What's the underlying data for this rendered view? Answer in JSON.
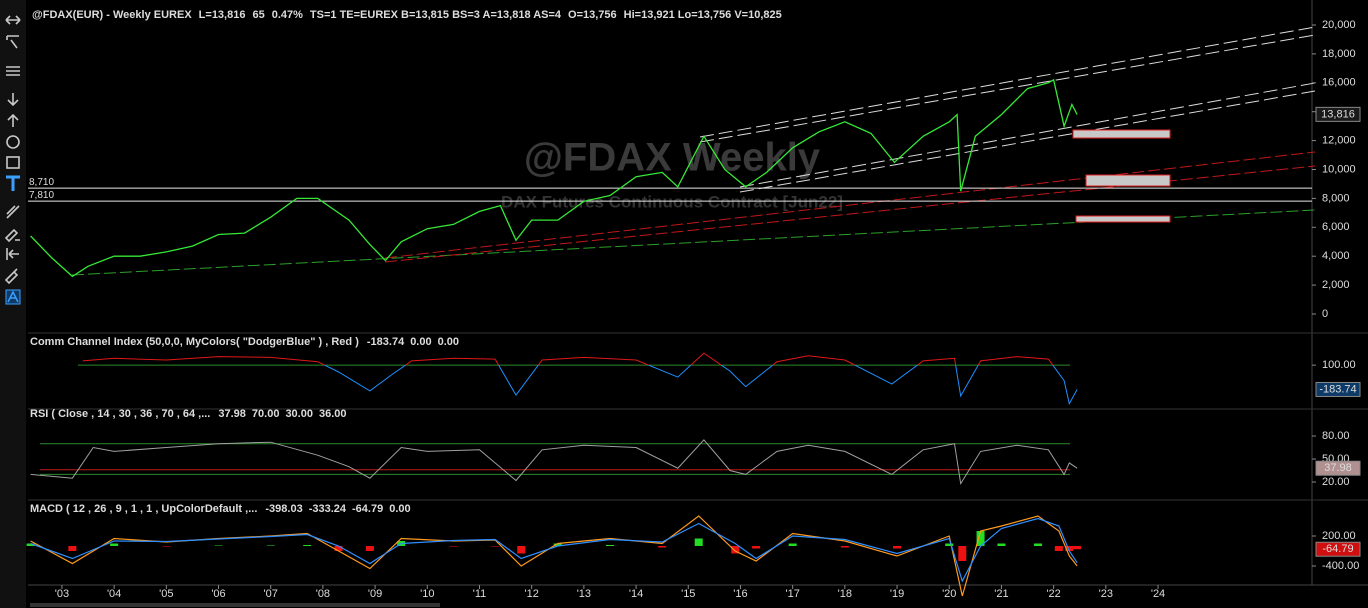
{
  "header": {
    "items": [
      {
        "text": "@FDAX(EUR) - Weekly  EUREX",
        "color": "#e8e8e8"
      },
      {
        "text": "L=13,816",
        "color": "#3ee03e"
      },
      {
        "text": "65",
        "color": "#3ee03e"
      },
      {
        "text": "0.47%",
        "color": "#3ee03e"
      },
      {
        "text": "TS=1  TE=EUREX  B=13,815  BS=3  A=13,818  AS=4",
        "color": "#e8e8e8"
      },
      {
        "text": "O=13,756",
        "color": "#3ee03e"
      },
      {
        "text": "Hi=13,921  Lo=13,756  V=10,825",
        "color": "#e8e8e8"
      }
    ]
  },
  "chart_data": [
    {
      "type": "line",
      "title": "@FDAX Weekly",
      "subtitle": "DAX  Futures Continuous Contract [Jun22]",
      "color": "#36e836",
      "xlim": [
        2002.35,
        2026.95
      ],
      "ylim": [
        -1107,
        21038
      ],
      "yticks": [
        {
          "value": 0,
          "label": "0"
        },
        {
          "value": 2000,
          "label": "2,000"
        },
        {
          "value": 4000,
          "label": "4,000"
        },
        {
          "value": 6000,
          "label": "6,000"
        },
        {
          "value": 8000,
          "label": "8,000"
        },
        {
          "value": 10000,
          "label": "10,000"
        },
        {
          "value": 12000,
          "label": "12,000"
        },
        {
          "value": 14000,
          "label": "14,000"
        },
        {
          "value": 16000,
          "label": "16,000"
        },
        {
          "value": 18000,
          "label": "18,000"
        },
        {
          "value": 20000,
          "label": "20,000"
        }
      ],
      "hlines": [
        {
          "value": 8710,
          "label": "8,710"
        },
        {
          "value": 7810,
          "label": "7,810"
        }
      ],
      "last_label": "13,816",
      "x": [
        2002.4,
        2002.8,
        2003.2,
        2003.5,
        2004,
        2004.5,
        2005,
        2005.5,
        2006,
        2006.5,
        2007,
        2007.5,
        2007.9,
        2008.5,
        2008.9,
        2009.2,
        2009.5,
        2010,
        2010.5,
        2011,
        2011.4,
        2011.7,
        2012,
        2012.5,
        2013,
        2013.5,
        2014,
        2014.5,
        2014.8,
        2015.3,
        2015.7,
        2016.1,
        2016.5,
        2017,
        2017.5,
        2018,
        2018.5,
        2018.95,
        2019.5,
        2020.0,
        2020.15,
        2020.22,
        2020.5,
        2021,
        2021.5,
        2021.9,
        2022.0,
        2022.2,
        2022.35,
        2022.45
      ],
      "values": [
        5400,
        3900,
        2600,
        3300,
        4000,
        4000,
        4300,
        4700,
        5500,
        5600,
        6700,
        8000,
        8000,
        6500,
        4800,
        3700,
        5000,
        5900,
        6200,
        7100,
        7500,
        5100,
        6500,
        6500,
        7800,
        8200,
        9500,
        9800,
        8800,
        12300,
        10000,
        8800,
        9800,
        11500,
        12600,
        13300,
        12500,
        10500,
        12300,
        13300,
        13800,
        8500,
        12300,
        13800,
        15600,
        16000,
        16200,
        13000,
        14500,
        13816
      ]
    },
    {
      "type": "line",
      "title": "Comm Channel Index (50,0,0, MyColors( \"DodgerBlue\" ) , Red )",
      "readouts": [
        {
          "text": "-183.74",
          "color": "#2f8fff"
        },
        {
          "text": "0.00",
          "color": "#2ea02e"
        },
        {
          "text": "0.00",
          "color": "#2ea02e"
        }
      ],
      "color_above": "#e01818",
      "color_below": "#1e90ff",
      "levels": [
        100
      ],
      "level_color": "#2a8a2a",
      "xlim": [
        2002.35,
        2026.95
      ],
      "ylim": [
        -400,
        300
      ],
      "yticks": [
        {
          "value": 100,
          "label": "100.00"
        }
      ],
      "x": [
        2003.4,
        2004,
        2005,
        2006,
        2007,
        2007.9,
        2008.3,
        2008.9,
        2009.3,
        2009.7,
        2010.5,
        2011.3,
        2011.7,
        2012.2,
        2013,
        2014,
        2014.8,
        2015.3,
        2015.8,
        2016.1,
        2016.7,
        2017.3,
        2018,
        2018.9,
        2019.5,
        2020.1,
        2020.22,
        2020.6,
        2021.3,
        2021.9,
        2022.2,
        2022.3,
        2022.45
      ],
      "values": [
        150,
        180,
        160,
        200,
        190,
        140,
        20,
        -200,
        -20,
        150,
        180,
        170,
        -250,
        160,
        190,
        160,
        -40,
        240,
        30,
        -150,
        140,
        210,
        160,
        -120,
        150,
        180,
        -260,
        150,
        200,
        170,
        -80,
        -350,
        -183.74
      ]
    },
    {
      "type": "line",
      "title": "RSI ( Close , 14 , 30 , 36 , 70 , 64 ,...",
      "color": "#a0a0a0",
      "readouts": [
        {
          "text": "37.98",
          "color": "#a0a0a0"
        },
        {
          "text": "70.00",
          "color": "#2ea02e"
        },
        {
          "text": "30.00",
          "color": "#2ea02e"
        },
        {
          "text": "36.00",
          "color": "#e01818"
        }
      ],
      "levels": [
        70,
        30,
        36
      ],
      "level_colors": [
        "#2a8a2a",
        "#2a8a2a",
        "#c01818"
      ],
      "xlim": [
        2002.35,
        2026.95
      ],
      "ylim": [
        9.6,
        100.9
      ],
      "yticks": [
        {
          "value": 80,
          "label": "80.00"
        },
        {
          "value": 50,
          "label": "50.00"
        },
        {
          "value": 20,
          "label": "20.00"
        }
      ],
      "x": [
        2002.4,
        2003.2,
        2003.6,
        2004,
        2005,
        2006,
        2007,
        2007.9,
        2008.5,
        2008.9,
        2009.5,
        2010,
        2011,
        2011.7,
        2012.2,
        2013,
        2014,
        2014.8,
        2015.3,
        2015.8,
        2016.1,
        2016.7,
        2017.3,
        2018,
        2018.9,
        2019.5,
        2020.1,
        2020.22,
        2020.6,
        2021.3,
        2021.9,
        2022.2,
        2022.3,
        2022.45
      ],
      "values": [
        30,
        25,
        65,
        60,
        65,
        70,
        72,
        55,
        40,
        25,
        65,
        60,
        62,
        22,
        62,
        68,
        65,
        38,
        75,
        35,
        30,
        60,
        68,
        60,
        30,
        62,
        70,
        18,
        60,
        68,
        62,
        30,
        45,
        37.98
      ]
    },
    {
      "type": "line",
      "title": "MACD ( 12 , 26 , 9 , 1 , 1 , UpColorDefault ,...",
      "readouts": [
        {
          "text": "-398.03",
          "color": "#ff9a1e"
        },
        {
          "text": "-333.24",
          "color": "#2f8fff"
        },
        {
          "text": "-64.79",
          "color": "#ff3030"
        },
        {
          "text": "0.00",
          "color": "#2ea02e"
        }
      ],
      "up_color": "#22dd22",
      "down_color": "#ee1111",
      "xlim": [
        2002.35,
        2026.95
      ],
      "ylim": [
        -780,
        620
      ],
      "yticks": [
        {
          "value": 200,
          "label": "200.00"
        },
        {
          "value": -400,
          "label": "-400.00"
        }
      ],
      "xticks": [
        {
          "value": 2003,
          "label": "'03"
        },
        {
          "value": 2004,
          "label": "'04"
        },
        {
          "value": 2005,
          "label": "'05"
        },
        {
          "value": 2006,
          "label": "'06"
        },
        {
          "value": 2007,
          "label": "'07"
        },
        {
          "value": 2008,
          "label": "'08"
        },
        {
          "value": 2009,
          "label": "'09"
        },
        {
          "value": 2010,
          "label": "'10"
        },
        {
          "value": 2011,
          "label": "'11"
        },
        {
          "value": 2012,
          "label": "'12"
        },
        {
          "value": 2013,
          "label": "'13"
        },
        {
          "value": 2014,
          "label": "'14"
        },
        {
          "value": 2015,
          "label": "'15"
        },
        {
          "value": 2016,
          "label": "'16"
        },
        {
          "value": 2017,
          "label": "'17"
        },
        {
          "value": 2018,
          "label": "'18"
        },
        {
          "value": 2019,
          "label": "'19"
        },
        {
          "value": 2020,
          "label": "'20"
        },
        {
          "value": 2021,
          "label": "'21"
        },
        {
          "value": 2022,
          "label": "'22"
        },
        {
          "value": 2023,
          "label": "'23"
        },
        {
          "value": 2024,
          "label": "'24"
        }
      ],
      "x": [
        2002.4,
        2003.2,
        2004,
        2005,
        2006,
        2007,
        2007.7,
        2008.3,
        2008.9,
        2009.5,
        2010.5,
        2011.3,
        2011.8,
        2012.5,
        2013.5,
        2014.5,
        2015.2,
        2015.9,
        2016.3,
        2017,
        2018,
        2019,
        2020.0,
        2020.25,
        2020.6,
        2021,
        2021.7,
        2022.1,
        2022.3,
        2022.45
      ],
      "series": [
        {
          "color": "#ff9a1e",
          "values": [
            100,
            -350,
            150,
            80,
            150,
            200,
            250,
            -100,
            -450,
            150,
            100,
            120,
            -400,
            50,
            150,
            50,
            600,
            -100,
            -300,
            250,
            100,
            -200,
            200,
            -1000,
            300,
            400,
            600,
            300,
            -200,
            -398.03
          ]
        },
        {
          "color": "#2f8fff",
          "values": [
            50,
            -250,
            100,
            90,
            140,
            190,
            230,
            0,
            -350,
            50,
            110,
            130,
            -250,
            0,
            130,
            80,
            450,
            50,
            -250,
            200,
            130,
            -150,
            150,
            -700,
            0,
            350,
            550,
            400,
            -100,
            -333.24
          ]
        }
      ],
      "histogram": [
        50,
        -100,
        50,
        -10,
        10,
        10,
        20,
        -100,
        -100,
        100,
        -10,
        -10,
        -150,
        50,
        20,
        -30,
        150,
        -150,
        -50,
        50,
        -30,
        -50,
        50,
        -300,
        300,
        50,
        50,
        -100,
        -100,
        -64.79
      ]
    }
  ]
}
